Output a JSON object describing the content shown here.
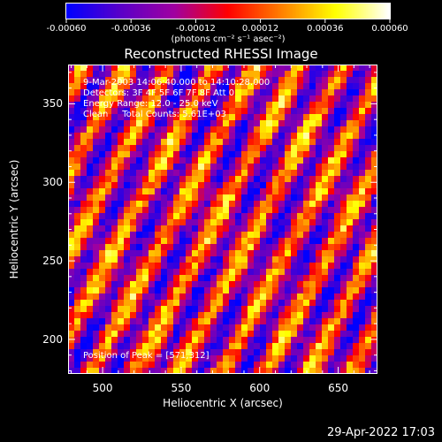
{
  "colorbar": {
    "ticks": [
      "-0.00060",
      "-0.00036",
      "-0.00012",
      "0.00012",
      "0.00036",
      "0.00060"
    ],
    "tick_values": [
      -0.0006,
      -0.00036,
      -0.00012,
      0.00012,
      0.00036,
      0.0006
    ],
    "units": "(photons cm⁻² s⁻¹ asec⁻²)",
    "colors": [
      "#0000ff",
      "#5a00c8",
      "#a000a0",
      "#ff0000",
      "#ff8000",
      "#ffff00",
      "#ffffff"
    ]
  },
  "title": "Reconstructed RHESSI Image",
  "annotations": {
    "time": "9-Mar-2003 14:06:40.000 to 14:10:28.000",
    "detectors": "Detectors: 3F 4F 5F 6F 7F 8F Att 0",
    "energy": "Energy Range: 12.0 - 25.0 keV",
    "clean": "Clean     Total Counts: 5.61E+03",
    "peak": "Position of Peak = [571,312]"
  },
  "axes": {
    "xlabel": "Heliocentric X (arcsec)",
    "ylabel": "Heliocentric Y (arcsec)"
  },
  "footer": {
    "date": "29-Apr-2022 17:03"
  },
  "chart_data": {
    "type": "heatmap",
    "x_ticks": [
      500,
      550,
      600,
      650
    ],
    "y_ticks": [
      200,
      250,
      300,
      350
    ],
    "xlim": [
      478,
      675
    ],
    "ylim": [
      178,
      375
    ],
    "value_range": [
      -0.0006,
      0.0006
    ],
    "peak_position": [
      571,
      312
    ]
  }
}
